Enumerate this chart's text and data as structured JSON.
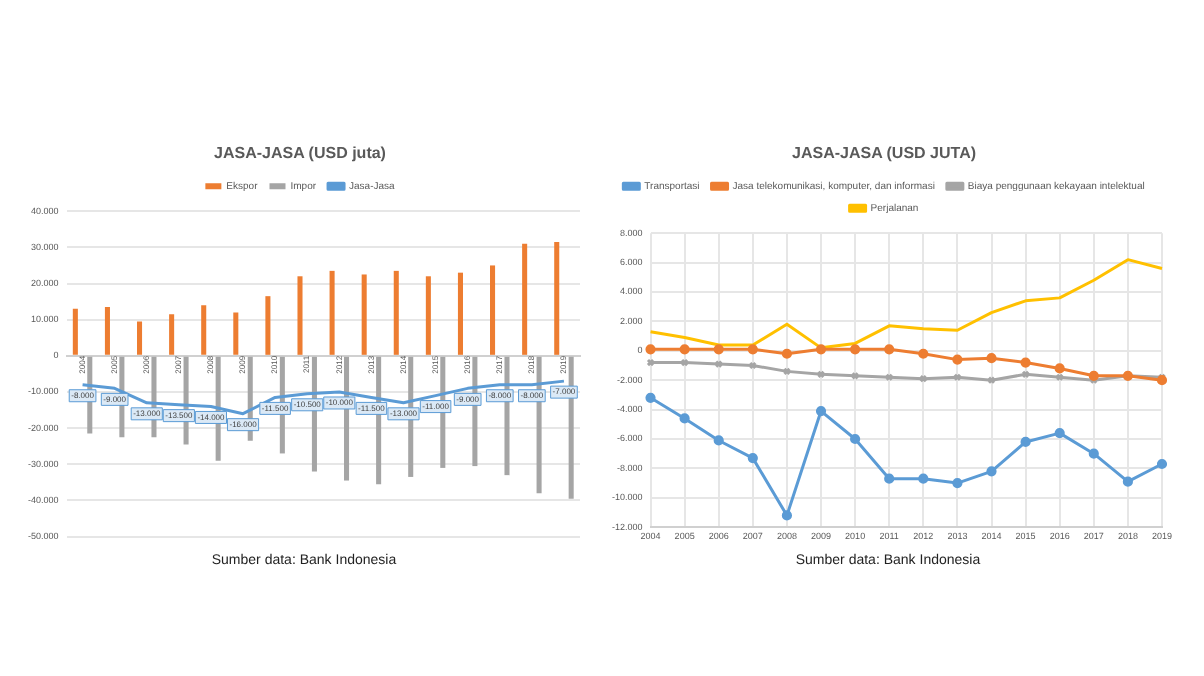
{
  "chart_data": [
    {
      "type": "bar",
      "title": "JASA-JASA (USD juta)",
      "categories": [
        "2004",
        "2005",
        "2006",
        "2007",
        "2008",
        "2009",
        "2010",
        "2011",
        "2012",
        "2013",
        "2014",
        "2015",
        "2016",
        "2017",
        "2018",
        "2019"
      ],
      "series": [
        {
          "name": "Ekspor",
          "color": "#ed7d31",
          "values": [
            13000,
            13500,
            9500,
            11500,
            14000,
            12000,
            16500,
            22000,
            23500,
            22500,
            23500,
            22000,
            23000,
            25000,
            31000,
            31500
          ]
        },
        {
          "name": "Impor",
          "color": "#a5a5a5",
          "values": [
            -21500,
            -22500,
            -22500,
            -24500,
            -29000,
            -23500,
            -27000,
            -32000,
            -34500,
            -35500,
            -33500,
            -31000,
            -30500,
            -33000,
            -38000,
            -39500
          ]
        },
        {
          "name": "Jasa-Jasa",
          "type": "line",
          "color": "#5b9bd5",
          "values": [
            -8000,
            -9000,
            -13000,
            -13500,
            -14000,
            -16000,
            -11500,
            -10500,
            -10000,
            -11500,
            -13000,
            -11000,
            -9000,
            -8000,
            -8000,
            -7000
          ],
          "value_labels": [
            "-8.000",
            "-9.000",
            "-13.000",
            "-13.500",
            "-14.000",
            "-16.000",
            "-11.500",
            "-10.500",
            "-10.000",
            "-11.500",
            "-13.000",
            "-11.000",
            "-9.000",
            "-8.000",
            "-8.000",
            "-7.000"
          ]
        }
      ],
      "ylim": [
        -50000,
        40000
      ],
      "yticks": [
        {
          "value": -50000,
          "label": "-50.000"
        },
        {
          "value": -40000,
          "label": "-40.000"
        },
        {
          "value": -30000,
          "label": "-30.000"
        },
        {
          "value": -20000,
          "label": "-20.000"
        },
        {
          "value": -10000,
          "label": "-10.000"
        },
        0,
        {
          "value": 10000,
          "label": "10.000"
        },
        {
          "value": 20000,
          "label": "20.000"
        },
        {
          "value": 30000,
          "label": "30.000"
        },
        {
          "value": 40000,
          "label": "40.000"
        }
      ],
      "grid": "y",
      "legend": "top",
      "annotations": [
        "Sumber data: Bank Indonesia"
      ]
    },
    {
      "type": "line",
      "title": "JASA-JASA (USD JUTA)",
      "categories": [
        "2004",
        "2005",
        "2006",
        "2007",
        "2008",
        "2009",
        "2010",
        "2011",
        "2012",
        "2013",
        "2014",
        "2015",
        "2016",
        "2017",
        "2018",
        "2019"
      ],
      "series": [
        {
          "name": "Transportasi",
          "color": "#5b9bd5",
          "marker": "circle",
          "values": [
            -3200,
            -4600,
            -6100,
            -7300,
            -11200,
            -4100,
            -6000,
            -8700,
            -8700,
            -9000,
            -8200,
            -6200,
            -5600,
            -7000,
            -8900,
            -7700
          ]
        },
        {
          "name": "Jasa telekomunikasi, komputer, dan informasi",
          "color": "#ed7d31",
          "marker": "circle",
          "values": [
            100,
            100,
            100,
            100,
            -200,
            100,
            100,
            100,
            -200,
            -600,
            -500,
            -800,
            -1200,
            -1700,
            -1700,
            -2000
          ]
        },
        {
          "name": "Biaya penggunaan kekayaan intelektual",
          "color": "#a5a5a5",
          "marker": "cross",
          "values": [
            -800,
            -800,
            -900,
            -1000,
            -1400,
            -1600,
            -1700,
            -1800,
            -1900,
            -1800,
            -2000,
            -1600,
            -1800,
            -2000,
            -1700,
            -1800
          ]
        },
        {
          "name": "Perjalanan",
          "color": "#ffc000",
          "marker": "none",
          "values": [
            1300,
            900,
            400,
            400,
            1800,
            200,
            500,
            1700,
            1500,
            1400,
            2600,
            3400,
            3600,
            4800,
            6200,
            5600
          ]
        }
      ],
      "ylim": [
        -12000,
        8000
      ],
      "yticks": [
        {
          "value": -12000,
          "label": "-12.000"
        },
        {
          "value": -10000,
          "label": "-10.000"
        },
        {
          "value": -8000,
          "label": "-8.000"
        },
        {
          "value": -6000,
          "label": "-6.000"
        },
        {
          "value": -4000,
          "label": "-4.000"
        },
        {
          "value": -2000,
          "label": "-2.000"
        },
        0,
        {
          "value": 2000,
          "label": "2.000"
        },
        {
          "value": 4000,
          "label": "4.000"
        },
        {
          "value": 6000,
          "label": "6.000"
        },
        {
          "value": 8000,
          "label": "8.000"
        }
      ],
      "grid": true,
      "legend": "top",
      "annotations": [
        "Sumber data: Bank Indonesia"
      ]
    }
  ]
}
